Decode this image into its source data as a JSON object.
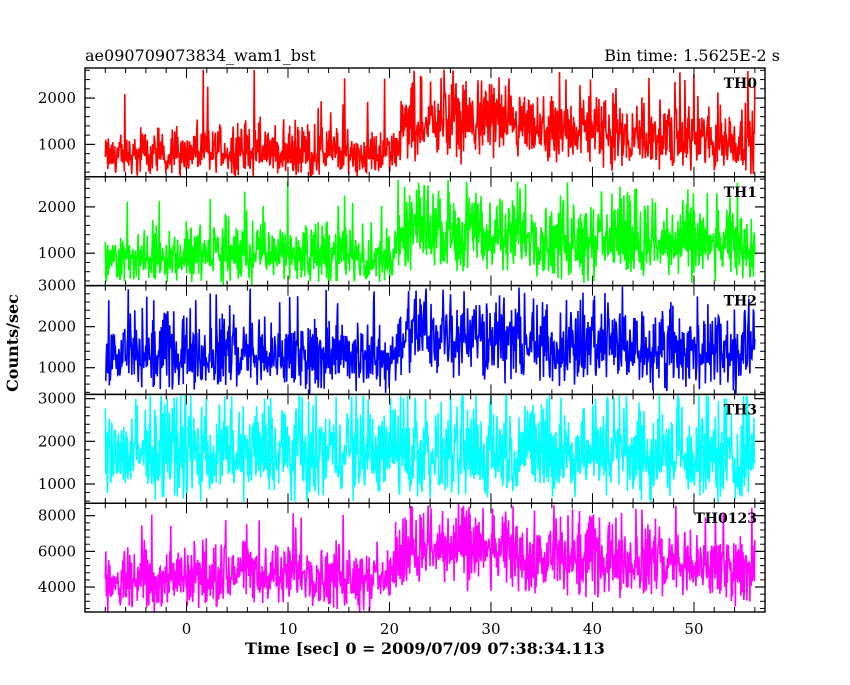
{
  "header": {
    "left_title": "ae090709073834_wam1_bst",
    "right_title": "Bin time: 1.5625E-2 s"
  },
  "chart_data": {
    "type": "line",
    "title": "ae090709073834_wam1_bst",
    "subtitle": "Bin time: 1.5625E-2 s",
    "xlabel": "Time [sec] 0 = 2009/07/09 07:38:34.113",
    "ylabel": "Counts/sec",
    "xlim": [
      -10,
      57
    ],
    "xticks": [
      "0",
      "10",
      "20",
      "30",
      "40",
      "50"
    ],
    "x_tick_values": [
      0,
      10,
      20,
      30,
      40,
      50
    ],
    "x_range_of_data": [
      -8,
      56
    ],
    "grid": false,
    "legend": "none",
    "panels": [
      {
        "name": "TH0",
        "color": "#ff0000",
        "ylim": [
          300,
          2650
        ],
        "yticks": [
          "1000",
          "2000"
        ],
        "ytick_values": [
          1000,
          2000
        ],
        "envelope": [
          {
            "x": -8,
            "mean": 750,
            "low": 300,
            "high": 1200
          },
          {
            "x": 0,
            "mean": 800,
            "low": 320,
            "high": 1500
          },
          {
            "x": 5,
            "mean": 850,
            "low": 350,
            "high": 1600
          },
          {
            "x": 10,
            "mean": 800,
            "low": 330,
            "high": 1500
          },
          {
            "x": 15,
            "mean": 800,
            "low": 320,
            "high": 1500
          },
          {
            "x": 20,
            "mean": 800,
            "low": 330,
            "high": 1300
          },
          {
            "x": 22,
            "mean": 1500,
            "low": 700,
            "high": 2400
          },
          {
            "x": 25,
            "mean": 1500,
            "low": 650,
            "high": 2500
          },
          {
            "x": 30,
            "mean": 1400,
            "low": 600,
            "high": 2300
          },
          {
            "x": 35,
            "mean": 1200,
            "low": 500,
            "high": 2000
          },
          {
            "x": 40,
            "mean": 1300,
            "low": 500,
            "high": 2200
          },
          {
            "x": 45,
            "mean": 1200,
            "low": 450,
            "high": 2000
          },
          {
            "x": 50,
            "mean": 1100,
            "low": 450,
            "high": 1900
          },
          {
            "x": 56,
            "mean": 1050,
            "low": 400,
            "high": 1800
          }
        ]
      },
      {
        "name": "TH1",
        "color": "#00ff00",
        "ylim": [
          300,
          2650
        ],
        "yticks": [
          "1000",
          "2000"
        ],
        "ytick_values": [
          1000,
          2000
        ],
        "envelope": [
          {
            "x": -8,
            "mean": 850,
            "low": 350,
            "high": 1300
          },
          {
            "x": 0,
            "mean": 950,
            "low": 350,
            "high": 1700
          },
          {
            "x": 5,
            "mean": 950,
            "low": 350,
            "high": 1900
          },
          {
            "x": 10,
            "mean": 950,
            "low": 350,
            "high": 1700
          },
          {
            "x": 15,
            "mean": 950,
            "low": 350,
            "high": 1700
          },
          {
            "x": 20,
            "mean": 850,
            "low": 330,
            "high": 1400
          },
          {
            "x": 22,
            "mean": 1500,
            "low": 650,
            "high": 2400
          },
          {
            "x": 25,
            "mean": 1550,
            "low": 650,
            "high": 2500
          },
          {
            "x": 30,
            "mean": 1400,
            "low": 550,
            "high": 2300
          },
          {
            "x": 35,
            "mean": 1300,
            "low": 450,
            "high": 2200
          },
          {
            "x": 40,
            "mean": 1300,
            "low": 450,
            "high": 2300
          },
          {
            "x": 45,
            "mean": 1250,
            "low": 450,
            "high": 2200
          },
          {
            "x": 50,
            "mean": 1200,
            "low": 400,
            "high": 2000
          },
          {
            "x": 56,
            "mean": 1100,
            "low": 400,
            "high": 1900
          }
        ]
      },
      {
        "name": "TH2",
        "color": "#0000ff",
        "ylim": [
          350,
          3000
        ],
        "yticks": [
          "1000",
          "2000",
          "3000"
        ],
        "ytick_values": [
          1000,
          2000,
          3000
        ],
        "envelope": [
          {
            "x": -8,
            "mean": 1250,
            "low": 500,
            "high": 2100
          },
          {
            "x": 0,
            "mean": 1300,
            "low": 450,
            "high": 2300
          },
          {
            "x": 5,
            "mean": 1300,
            "low": 450,
            "high": 2300
          },
          {
            "x": 10,
            "mean": 1250,
            "low": 450,
            "high": 2200
          },
          {
            "x": 15,
            "mean": 1300,
            "low": 450,
            "high": 2300
          },
          {
            "x": 20,
            "mean": 1200,
            "low": 400,
            "high": 2000
          },
          {
            "x": 22,
            "mean": 1800,
            "low": 800,
            "high": 2900
          },
          {
            "x": 25,
            "mean": 1800,
            "low": 750,
            "high": 2900
          },
          {
            "x": 30,
            "mean": 1700,
            "low": 700,
            "high": 2700
          },
          {
            "x": 35,
            "mean": 1550,
            "low": 550,
            "high": 2600
          },
          {
            "x": 40,
            "mean": 1600,
            "low": 550,
            "high": 2700
          },
          {
            "x": 45,
            "mean": 1500,
            "low": 500,
            "high": 2600
          },
          {
            "x": 50,
            "mean": 1450,
            "low": 500,
            "high": 2500
          },
          {
            "x": 56,
            "mean": 1400,
            "low": 450,
            "high": 2400
          }
        ]
      },
      {
        "name": "TH3",
        "color": "#00ffff",
        "ylim": [
          550,
          3100
        ],
        "yticks": [
          "1000",
          "2000",
          "3000"
        ],
        "ytick_values": [
          1000,
          2000,
          3000
        ],
        "envelope": [
          {
            "x": -8,
            "mean": 1650,
            "low": 700,
            "high": 2900
          },
          {
            "x": 0,
            "mean": 1650,
            "low": 650,
            "high": 3000
          },
          {
            "x": 10,
            "mean": 1650,
            "low": 650,
            "high": 3000
          },
          {
            "x": 20,
            "mean": 1650,
            "low": 650,
            "high": 3000
          },
          {
            "x": 30,
            "mean": 1700,
            "low": 650,
            "high": 3050
          },
          {
            "x": 40,
            "mean": 1650,
            "low": 650,
            "high": 3000
          },
          {
            "x": 50,
            "mean": 1650,
            "low": 650,
            "high": 3000
          },
          {
            "x": 56,
            "mean": 1600,
            "low": 650,
            "high": 2900
          }
        ]
      },
      {
        "name": "TH0123",
        "color": "#ff00ff",
        "ylim": [
          2600,
          8700
        ],
        "yticks": [
          "4000",
          "6000",
          "8000"
        ],
        "ytick_values": [
          4000,
          6000,
          8000
        ],
        "envelope": [
          {
            "x": -8,
            "mean": 4400,
            "low": 2700,
            "high": 5700
          },
          {
            "x": 0,
            "mean": 4700,
            "low": 2800,
            "high": 6500
          },
          {
            "x": 5,
            "mean": 4750,
            "low": 2900,
            "high": 6800
          },
          {
            "x": 10,
            "mean": 4700,
            "low": 2900,
            "high": 6500
          },
          {
            "x": 15,
            "mean": 4700,
            "low": 2800,
            "high": 6600
          },
          {
            "x": 20,
            "mean": 4500,
            "low": 2800,
            "high": 6000
          },
          {
            "x": 22,
            "mean": 6300,
            "low": 4200,
            "high": 8400
          },
          {
            "x": 25,
            "mean": 6300,
            "low": 4000,
            "high": 8600
          },
          {
            "x": 30,
            "mean": 6000,
            "low": 3800,
            "high": 8100
          },
          {
            "x": 35,
            "mean": 5500,
            "low": 3400,
            "high": 7600
          },
          {
            "x": 40,
            "mean": 5600,
            "low": 3400,
            "high": 7800
          },
          {
            "x": 45,
            "mean": 5400,
            "low": 3300,
            "high": 7500
          },
          {
            "x": 50,
            "mean": 5200,
            "low": 3200,
            "high": 7200
          },
          {
            "x": 56,
            "mean": 5000,
            "low": 3100,
            "high": 6900
          }
        ]
      }
    ]
  }
}
